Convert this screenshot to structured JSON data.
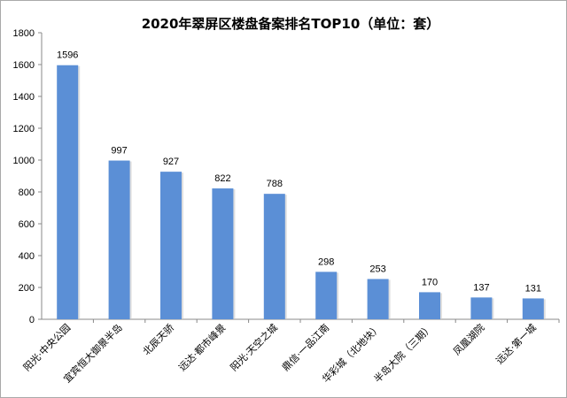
{
  "chart_data": {
    "type": "bar",
    "title": "2020年翠屏区楼盘备案排名TOP10（单位：套）",
    "xlabel": "",
    "ylabel": "",
    "categories": [
      "阳光·中央公园",
      "宜宾恒大御景半岛",
      "北辰天骄",
      "远达·都市峰景",
      "阳光·天空之城",
      "鼎信·一品江南",
      "华彩城（北地块）",
      "半岛大院（三期）",
      "凤凰湖院",
      "远达·第一城"
    ],
    "values": [
      1596,
      997,
      927,
      822,
      788,
      298,
      253,
      170,
      137,
      131
    ],
    "ylim": [
      0,
      1800
    ],
    "yticks": [
      0,
      200,
      400,
      600,
      800,
      1000,
      1200,
      1400,
      1600,
      1800
    ],
    "grid": false,
    "legend": "none",
    "bar_color": "#5b8fd6",
    "axis_color": "#888888"
  }
}
